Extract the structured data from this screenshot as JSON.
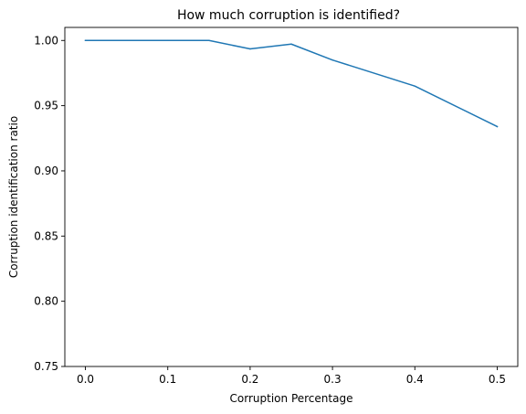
{
  "chart_data": {
    "type": "line",
    "title": "How much corruption is identified?",
    "xlabel": "Corruption Percentage",
    "ylabel": "Corruption identification ratio",
    "xlim": [
      -0.025,
      0.525
    ],
    "ylim": [
      0.75,
      1.01
    ],
    "xticks": [
      0.0,
      0.1,
      0.2,
      0.3,
      0.4,
      0.5
    ],
    "xtick_labels": [
      "0.0",
      "0.1",
      "0.2",
      "0.3",
      "0.4",
      "0.5"
    ],
    "yticks": [
      0.75,
      0.8,
      0.85,
      0.9,
      0.95,
      1.0
    ],
    "ytick_labels": [
      "0.75",
      "0.80",
      "0.85",
      "0.90",
      "0.95",
      "1.00"
    ],
    "grid": false,
    "legend": "none",
    "series": [
      {
        "color": "#1f77b4",
        "x": [
          0.0,
          0.05,
          0.1,
          0.15,
          0.2,
          0.25,
          0.3,
          0.4,
          0.5
        ],
        "y": [
          1.0,
          1.0,
          1.0,
          1.0,
          0.9935,
          0.9972,
          0.985,
          0.965,
          0.934
        ]
      }
    ]
  }
}
